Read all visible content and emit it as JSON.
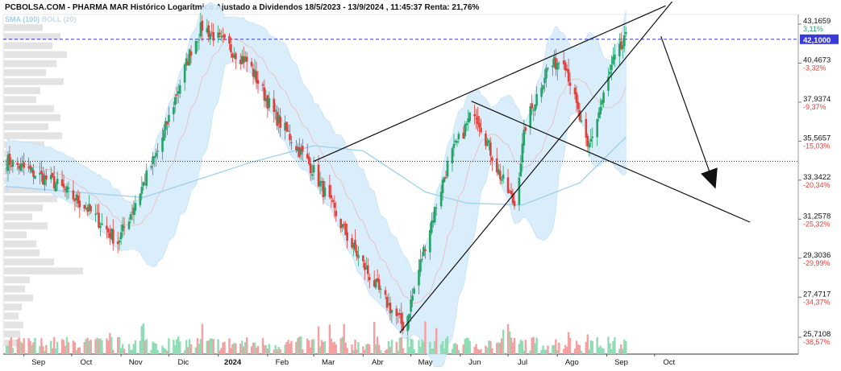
{
  "header": {
    "title": "PCBOLSA.COM - PHARMA MAR Histórico Logarítmico Ajustado a Dividendos 18/5/2023 - 13/9/2024 , 11:45:37 Renta: 21,76%"
  },
  "legend": {
    "sma": "SMA (100)",
    "boll": "BOLL (20)"
  },
  "colors": {
    "up": "#26a269",
    "down": "#e0403a",
    "band_fill": "#d6ecfb",
    "sma": "#9fd0f0",
    "reference_line": "#3a3ad8",
    "trend_lines": "#111111"
  },
  "chart_data": {
    "type": "candlestick",
    "scale": "log",
    "x_ticks": [
      "Sep",
      "Oct",
      "Nov",
      "Dic",
      "2024",
      "Feb",
      "Mar",
      "Abr",
      "May",
      "Jun",
      "Jul",
      "Ago",
      "Sep",
      "Oct"
    ],
    "y_ticks": [
      {
        "value": "43,1659",
        "pct": "3,11%"
      },
      {
        "value": "40,4673",
        "pct": "-3,32%"
      },
      {
        "value": "37,9374",
        "pct": "-9,37%"
      },
      {
        "value": "35,5657",
        "pct": "-15,03%"
      },
      {
        "value": "33,3422",
        "pct": "-20,34%"
      },
      {
        "value": "31,2578",
        "pct": "-25,32%"
      },
      {
        "value": "29,3036",
        "pct": "-29,99%"
      },
      {
        "value": "27,4717",
        "pct": "-34,37%"
      },
      {
        "value": "25,7108",
        "pct": "-38,57%"
      }
    ],
    "current_price": "42,1000",
    "reference_price": 34.4,
    "price_path": [
      {
        "date": "2023-08-20",
        "price": 34.5
      },
      {
        "date": "2023-09-20",
        "price": 33.2
      },
      {
        "date": "2023-10-10",
        "price": 31.9
      },
      {
        "date": "2023-10-30",
        "price": 30.1
      },
      {
        "date": "2023-11-25",
        "price": 35.2
      },
      {
        "date": "2023-12-15",
        "price": 41.4
      },
      {
        "date": "2023-12-22",
        "price": 43.0
      },
      {
        "date": "2024-01-20",
        "price": 40.5
      },
      {
        "date": "2024-02-05",
        "price": 37.2
      },
      {
        "date": "2024-02-29",
        "price": 34.0
      },
      {
        "date": "2024-03-25",
        "price": 29.9
      },
      {
        "date": "2024-04-12",
        "price": 27.6
      },
      {
        "date": "2024-04-27",
        "price": 26.1
      },
      {
        "date": "2024-05-10",
        "price": 30.0
      },
      {
        "date": "2024-05-25",
        "price": 34.5
      },
      {
        "date": "2024-06-10",
        "price": 37.5
      },
      {
        "date": "2024-06-25",
        "price": 33.8
      },
      {
        "date": "2024-07-05",
        "price": 32.0
      },
      {
        "date": "2024-07-12",
        "price": 36.5
      },
      {
        "date": "2024-07-25",
        "price": 40.0
      },
      {
        "date": "2024-08-05",
        "price": 40.9
      },
      {
        "date": "2024-08-20",
        "price": 35.0
      },
      {
        "date": "2024-09-05",
        "price": 40.5
      },
      {
        "date": "2024-09-13",
        "price": 42.1
      }
    ],
    "sma_path": [
      {
        "date": "2023-08-20",
        "price": 33.0
      },
      {
        "date": "2023-11-15",
        "price": 32.4
      },
      {
        "date": "2024-01-20",
        "price": 34.3
      },
      {
        "date": "2024-03-01",
        "price": 35.3
      },
      {
        "date": "2024-04-01",
        "price": 35.0
      },
      {
        "date": "2024-05-10",
        "price": 32.7
      },
      {
        "date": "2024-06-05",
        "price": 32.1
      },
      {
        "date": "2024-07-10",
        "price": 32.0
      },
      {
        "date": "2024-08-15",
        "price": 33.2
      },
      {
        "date": "2024-09-13",
        "price": 35.8
      }
    ],
    "trend_lines": [
      {
        "from": {
          "date": "2024-03-01",
          "price": 34.4
        },
        "to": {
          "date": "2024-10-08",
          "price": 44.5
        }
      },
      {
        "from": {
          "date": "2024-04-24",
          "price": 25.9
        },
        "to": {
          "date": "2024-10-12",
          "price": 44.8
        }
      },
      {
        "from": {
          "date": "2024-06-08",
          "price": 38.0
        },
        "to": {
          "date": "2024-11-30",
          "price": 31.1
        }
      },
      {
        "from": {
          "date": "2024-10-05",
          "price": 42.3
        },
        "to": {
          "date": "2024-11-07",
          "price": 33.2
        }
      }
    ]
  }
}
